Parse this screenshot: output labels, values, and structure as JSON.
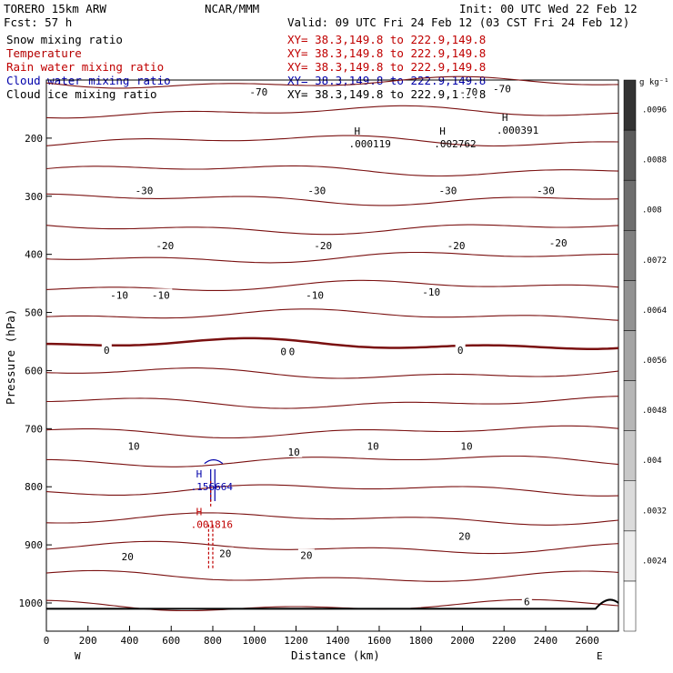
{
  "header": {
    "model": "TORERO  15km ARW",
    "org": "NCAR/MMM",
    "init": "Init: 00 UTC Wed 22 Feb 12",
    "fcst": "Fcst:   57 h",
    "valid": "Valid: 09 UTC Fri 24 Feb 12 (03 CST Fri 24 Feb 12)",
    "fields": [
      {
        "name": "Snow mixing ratio",
        "color": "#000000"
      },
      {
        "name": "Temperature",
        "color": "#b40000"
      },
      {
        "name": "Rain water mixing ratio",
        "color": "#c00000"
      },
      {
        "name": "Cloud water mixing ratio",
        "color": "#0000aa"
      },
      {
        "name": "Cloud ice mixing ratio",
        "color": "#000000"
      }
    ],
    "xy_lines": [
      {
        "label": "XY=",
        "text": "38.3,149.8 to 222.9,149.8",
        "color": "#c00000"
      },
      {
        "label": "XY=",
        "text": "38.3,149.8 to 222.9,149.8",
        "color": "#c00000"
      },
      {
        "label": "XY=",
        "text": "38.3,149.8 to 222.9,149.8",
        "color": "#c00000"
      },
      {
        "label": "XY=",
        "text": "38.3,149.8 to 222.9,149.8",
        "color": "#0000aa"
      },
      {
        "label": "XY=",
        "text": "38.3,149.8 to 222.9,149.8",
        "color": "#000000"
      }
    ]
  },
  "colorbar": {
    "unit": "g kg⁻¹",
    "ticks": [
      ".0024",
      ".0032",
      ".004",
      ".0048",
      ".0056",
      ".0064",
      ".0072",
      ".008",
      ".0088",
      ".0096"
    ]
  },
  "chart_data": {
    "type": "cross-section contour",
    "xlabel": "Distance (km)",
    "ylabel": "Pressure (hPa)",
    "xlim": [
      0,
      2750
    ],
    "ylim": [
      1050,
      100
    ],
    "x_ticks": [
      0,
      200,
      400,
      600,
      800,
      1000,
      1200,
      1400,
      1600,
      1800,
      2000,
      2200,
      2400,
      2600
    ],
    "y_ticks": [
      200,
      300,
      400,
      500,
      600,
      700,
      800,
      900,
      1000
    ],
    "x_end_labels": {
      "left": "W",
      "right": "E"
    },
    "temperature_labels": [
      {
        "text": "-70",
        "x": 1020,
        "p": 120
      },
      {
        "text": "-70",
        "x": 2030,
        "p": 120
      },
      {
        "text": "-70",
        "x": 2190,
        "p": 115
      },
      {
        "text": "-30",
        "x": 470,
        "p": 290
      },
      {
        "text": "-30",
        "x": 1300,
        "p": 290
      },
      {
        "text": "-30",
        "x": 1930,
        "p": 290
      },
      {
        "text": "-30",
        "x": 2400,
        "p": 290
      },
      {
        "text": "-20",
        "x": 570,
        "p": 385
      },
      {
        "text": "-20",
        "x": 1330,
        "p": 385
      },
      {
        "text": "-20",
        "x": 1970,
        "p": 385
      },
      {
        "text": "-20",
        "x": 2460,
        "p": 380
      },
      {
        "text": "-10",
        "x": 350,
        "p": 470
      },
      {
        "text": "-10",
        "x": 550,
        "p": 470
      },
      {
        "text": "-10",
        "x": 1290,
        "p": 470
      },
      {
        "text": "-10",
        "x": 1850,
        "p": 465
      },
      {
        "text": "0",
        "x": 290,
        "p": 565
      },
      {
        "text": "0",
        "x": 1140,
        "p": 567
      },
      {
        "text": "0",
        "x": 1180,
        "p": 567
      },
      {
        "text": "0",
        "x": 1990,
        "p": 565
      },
      {
        "text": "10",
        "x": 420,
        "p": 730
      },
      {
        "text": "10",
        "x": 1190,
        "p": 740
      },
      {
        "text": "10",
        "x": 1570,
        "p": 730
      },
      {
        "text": "10",
        "x": 2020,
        "p": 730
      },
      {
        "text": "20",
        "x": 390,
        "p": 920
      },
      {
        "text": "20",
        "x": 860,
        "p": 915
      },
      {
        "text": "20",
        "x": 1250,
        "p": 918
      },
      {
        "text": "20",
        "x": 2010,
        "p": 885
      },
      {
        "text": "6",
        "x": 2310,
        "p": 998
      }
    ],
    "maxima": [
      {
        "text": ".000119",
        "x": 1480,
        "p": 200,
        "color": "#000000"
      },
      {
        "text": ".002762",
        "x": 1890,
        "p": 200,
        "color": "#000000"
      },
      {
        "text": ".000391",
        "x": 2190,
        "p": 177,
        "color": "#000000"
      },
      {
        "text": ".156664",
        "x": 720,
        "p": 790,
        "color": "#0000aa"
      },
      {
        "text": ".001816",
        "x": 720,
        "p": 855,
        "color": "#c00000"
      }
    ],
    "max_marker": "H"
  }
}
